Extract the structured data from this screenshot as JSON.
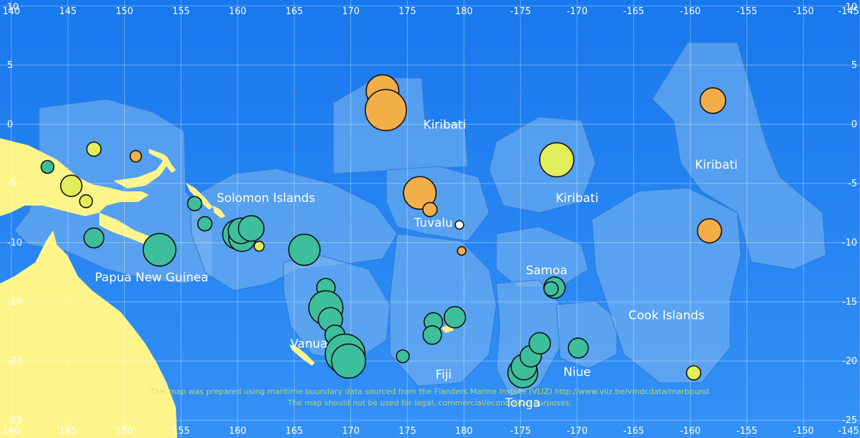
{
  "map": {
    "lon_min": 139,
    "lon_max": 215,
    "lat_min": -26.5,
    "lat_max": 10.5,
    "x_ticks": [
      "140",
      "145",
      "150",
      "155",
      "160",
      "165",
      "170",
      "175",
      "180",
      "-175",
      "-170",
      "-165",
      "-160",
      "-155",
      "-150",
      "-145"
    ],
    "x_tick_lon": [
      140,
      145,
      150,
      155,
      160,
      165,
      170,
      175,
      180,
      185,
      190,
      195,
      200,
      205,
      210,
      215
    ],
    "y_ticks": [
      "10",
      "5",
      "0",
      "-5",
      "-10",
      "-15",
      "-20",
      "-25"
    ],
    "y_tick_lat": [
      10,
      5,
      0,
      -5,
      -10,
      -15,
      -20,
      -25
    ],
    "colors": {
      "ocean": "#1a7cf0",
      "eez": "#7fb8ee",
      "land": "#fdf58a",
      "teal": "#3dbf9c",
      "orange": "#f2ae48",
      "yellow": "#e2ee5a",
      "white": "#ffffff"
    },
    "regions": [
      {
        "name": "Papua New Guinea",
        "lon": 152.4,
        "lat": -12.9
      },
      {
        "name": "Solomon Islands",
        "lon": 162.5,
        "lat": -6.2
      },
      {
        "name": "Kiribati",
        "lon": 178.3,
        "lat": 0.0
      },
      {
        "name": "Tuvalu",
        "lon": 177.3,
        "lat": -8.3
      },
      {
        "name": "Kiribati",
        "lon": 190.0,
        "lat": -6.2
      },
      {
        "name": "Kiribati",
        "lon": 202.3,
        "lat": -3.4
      },
      {
        "name": "Samoa",
        "lon": 187.3,
        "lat": -12.3
      },
      {
        "name": "Cook Islands",
        "lon": 197.9,
        "lat": -16.1
      },
      {
        "name": "Vanua",
        "lon": 166.3,
        "lat": -18.5
      },
      {
        "name": "Fiji",
        "lon": 178.2,
        "lat": -21.1
      },
      {
        "name": "Niue",
        "lon": 190.0,
        "lat": -20.9
      },
      {
        "name": "Tonga",
        "lon": 185.2,
        "lat": -23.5
      }
    ],
    "points": [
      {
        "lon": 143.2,
        "lat": -3.6,
        "size": 9,
        "color": "teal"
      },
      {
        "lon": 147.3,
        "lat": -2.1,
        "size": 10,
        "color": "yellow"
      },
      {
        "lon": 151.0,
        "lat": -2.7,
        "size": 8,
        "color": "orange"
      },
      {
        "lon": 145.3,
        "lat": -5.2,
        "size": 15,
        "color": "yellow"
      },
      {
        "lon": 146.6,
        "lat": -6.5,
        "size": 9,
        "color": "yellow"
      },
      {
        "lon": 147.3,
        "lat": -9.6,
        "size": 14,
        "color": "teal"
      },
      {
        "lon": 153.1,
        "lat": -10.6,
        "size": 23,
        "color": "teal"
      },
      {
        "lon": 156.2,
        "lat": -6.7,
        "size": 10,
        "color": "teal"
      },
      {
        "lon": 157.1,
        "lat": -8.4,
        "size": 10,
        "color": "teal"
      },
      {
        "lon": 160.0,
        "lat": -9.3,
        "size": 21,
        "color": "teal"
      },
      {
        "lon": 160.4,
        "lat": -9.6,
        "size": 19,
        "color": "teal"
      },
      {
        "lon": 160.3,
        "lat": -9.0,
        "size": 18,
        "color": "teal"
      },
      {
        "lon": 161.2,
        "lat": -8.8,
        "size": 18,
        "color": "teal"
      },
      {
        "lon": 161.9,
        "lat": -10.3,
        "size": 7,
        "color": "yellow"
      },
      {
        "lon": 165.9,
        "lat": -10.6,
        "size": 22,
        "color": "teal"
      },
      {
        "lon": 167.8,
        "lat": -13.8,
        "size": 13,
        "color": "teal"
      },
      {
        "lon": 167.8,
        "lat": -15.5,
        "size": 24,
        "color": "teal"
      },
      {
        "lon": 168.2,
        "lat": -16.5,
        "size": 17,
        "color": "teal"
      },
      {
        "lon": 168.6,
        "lat": -17.8,
        "size": 14,
        "color": "teal"
      },
      {
        "lon": 169.5,
        "lat": -19.4,
        "size": 28,
        "color": "teal"
      },
      {
        "lon": 169.8,
        "lat": -20.0,
        "size": 24,
        "color": "teal"
      },
      {
        "lon": 172.8,
        "lat": 2.8,
        "size": 23,
        "color": "orange"
      },
      {
        "lon": 173.1,
        "lat": 1.2,
        "size": 29,
        "color": "orange"
      },
      {
        "lon": 176.1,
        "lat": -5.8,
        "size": 23,
        "color": "orange"
      },
      {
        "lon": 177.0,
        "lat": -7.2,
        "size": 10,
        "color": "orange"
      },
      {
        "lon": 179.6,
        "lat": -8.5,
        "size": 6,
        "color": "white"
      },
      {
        "lon": 179.8,
        "lat": -10.7,
        "size": 6,
        "color": "orange"
      },
      {
        "lon": 174.6,
        "lat": -19.6,
        "size": 9,
        "color": "teal"
      },
      {
        "lon": 177.3,
        "lat": -16.7,
        "size": 13,
        "color": "teal"
      },
      {
        "lon": 177.2,
        "lat": -17.8,
        "size": 13,
        "color": "teal"
      },
      {
        "lon": 179.2,
        "lat": -16.3,
        "size": 15,
        "color": "teal"
      },
      {
        "lon": 185.2,
        "lat": -21.0,
        "size": 21,
        "color": "teal"
      },
      {
        "lon": 185.3,
        "lat": -20.5,
        "size": 18,
        "color": "teal"
      },
      {
        "lon": 185.9,
        "lat": -19.6,
        "size": 15,
        "color": "teal"
      },
      {
        "lon": 186.7,
        "lat": -18.5,
        "size": 15,
        "color": "teal"
      },
      {
        "lon": 188.0,
        "lat": -13.8,
        "size": 15,
        "color": "teal"
      },
      {
        "lon": 187.7,
        "lat": -13.9,
        "size": 10,
        "color": "teal"
      },
      {
        "lon": 190.1,
        "lat": -18.9,
        "size": 14,
        "color": "teal"
      },
      {
        "lon": 188.2,
        "lat": -3.0,
        "size": 24,
        "color": "yellow"
      },
      {
        "lon": 202.0,
        "lat": 2.0,
        "size": 18,
        "color": "orange"
      },
      {
        "lon": 201.7,
        "lat": -9.0,
        "size": 17,
        "color": "orange"
      },
      {
        "lon": 200.3,
        "lat": -21.0,
        "size": 10,
        "color": "yellow"
      }
    ],
    "disclaimer_line1": "This map was prepared using maritime boundary data sourced from the Flanders Marine Instute (VLIZ) http://www.vliz.be/vmdcdata/marbound",
    "disclaimer_line2": "The map should not be used for legal, commercial/economical purposes."
  }
}
